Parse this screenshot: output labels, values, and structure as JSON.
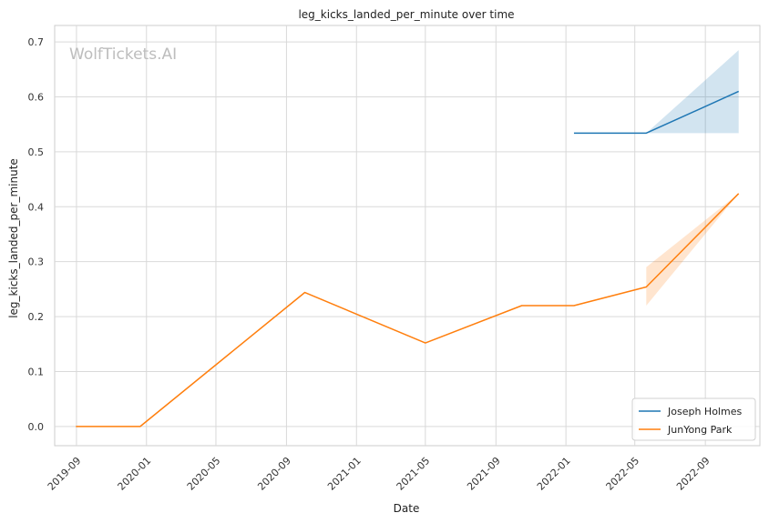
{
  "chart_data": {
    "type": "line",
    "title": "leg_kicks_landed_per_minute over time",
    "xlabel": "Date",
    "ylabel": "leg_kicks_landed_per_minute",
    "watermark": "WolfTickets.AI",
    "x_ticks": [
      "2019-09",
      "2020-01",
      "2020-05",
      "2020-09",
      "2021-01",
      "2021-05",
      "2021-09",
      "2022-01",
      "2022-05",
      "2022-09"
    ],
    "y_ticks": [
      0.0,
      0.1,
      0.2,
      0.3,
      0.4,
      0.5,
      0.6,
      0.7
    ],
    "y_tick_labels": [
      "0.0",
      "0.1",
      "0.2",
      "0.3",
      "0.4",
      "0.5",
      "0.6",
      "0.7"
    ],
    "xlim": [
      "2019-07-25",
      "2022-12-05"
    ],
    "ylim": [
      -0.035,
      0.73
    ],
    "grid": true,
    "legend_position": "lower-right",
    "series": [
      {
        "name": "Joseph Holmes",
        "color": "#1f77b4",
        "points": [
          {
            "x": "2022-01-15",
            "y": 0.534
          },
          {
            "x": "2022-05-21",
            "y": 0.534
          },
          {
            "x": "2022-10-29",
            "y": 0.61
          }
        ],
        "band": [
          {
            "x": "2022-05-21",
            "lo": 0.534,
            "hi": 0.534
          },
          {
            "x": "2022-10-29",
            "lo": 0.534,
            "hi": 0.685
          }
        ]
      },
      {
        "name": "JunYong Park",
        "color": "#ff7f0e",
        "points": [
          {
            "x": "2019-08-31",
            "y": 0.0
          },
          {
            "x": "2019-12-21",
            "y": 0.0
          },
          {
            "x": "2020-10-03",
            "y": 0.244
          },
          {
            "x": "2021-05-01",
            "y": 0.152
          },
          {
            "x": "2021-10-16",
            "y": 0.22
          },
          {
            "x": "2022-01-15",
            "y": 0.22
          },
          {
            "x": "2022-05-21",
            "y": 0.254
          },
          {
            "x": "2022-10-29",
            "y": 0.424
          }
        ],
        "band": [
          {
            "x": "2022-05-21",
            "lo": 0.22,
            "hi": 0.29
          },
          {
            "x": "2022-10-29",
            "lo": 0.424,
            "hi": 0.424
          }
        ]
      }
    ]
  }
}
